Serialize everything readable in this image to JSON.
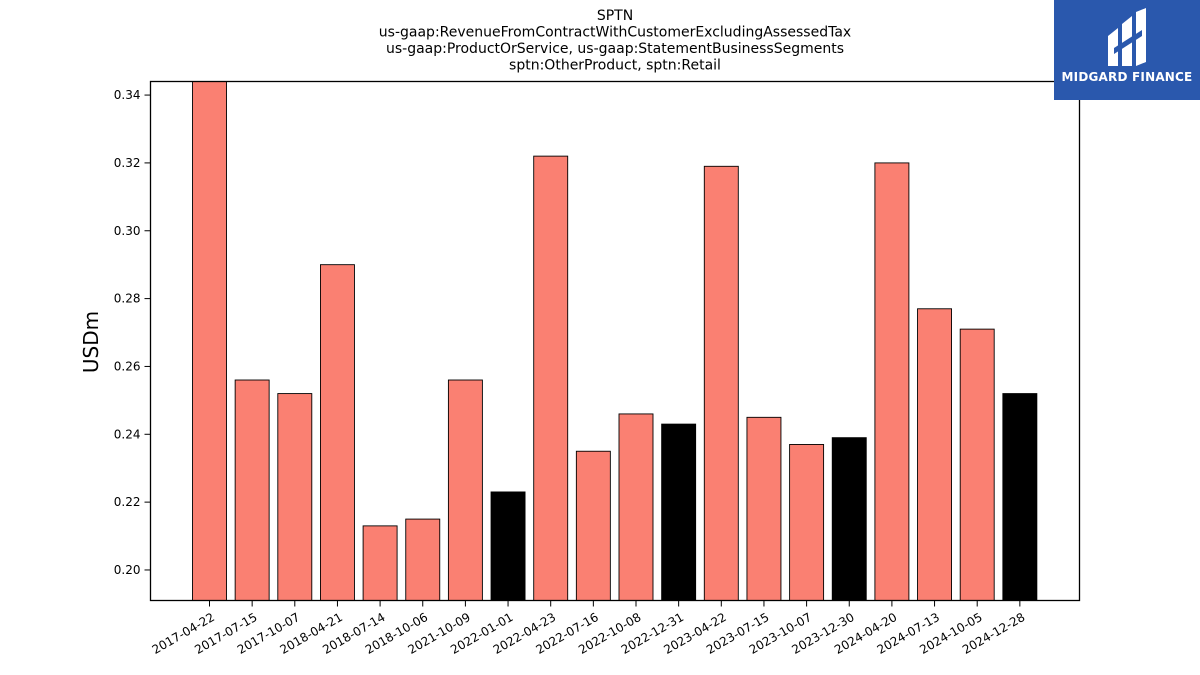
{
  "chart_data": {
    "type": "bar",
    "title_lines": [
      "SPTN",
      "us-gaap:RevenueFromContractWithCustomerExcludingAssessedTax",
      "us-gaap:ProductOrService, us-gaap:StatementBusinessSegments",
      "sptn:OtherProduct, sptn:Retail"
    ],
    "xlabel": "",
    "ylabel": "USDm",
    "ylim": [
      0.191,
      0.344
    ],
    "yticks": [
      "0.20",
      "0.22",
      "0.24",
      "0.26",
      "0.28",
      "0.30",
      "0.32",
      "0.34"
    ],
    "grid": false,
    "categories": [
      "2017-04-22",
      "2017-07-15",
      "2017-10-07",
      "2018-04-21",
      "2018-07-14",
      "2018-10-06",
      "2021-10-09",
      "2022-01-01",
      "2022-04-23",
      "2022-07-16",
      "2022-10-08",
      "2022-12-31",
      "2023-04-22",
      "2023-07-15",
      "2023-10-07",
      "2023-12-30",
      "2024-04-20",
      "2024-07-13",
      "2024-10-05",
      "2024-12-28"
    ],
    "values": [
      0.344,
      0.256,
      0.252,
      0.29,
      0.213,
      0.215,
      0.256,
      0.223,
      0.322,
      0.235,
      0.246,
      0.243,
      0.319,
      0.245,
      0.237,
      0.239,
      0.32,
      0.277,
      0.271,
      0.252
    ],
    "bar_colors": [
      "#fa8072",
      "#fa8072",
      "#fa8072",
      "#fa8072",
      "#fa8072",
      "#fa8072",
      "#fa8072",
      "#000000",
      "#fa8072",
      "#fa8072",
      "#fa8072",
      "#000000",
      "#fa8072",
      "#fa8072",
      "#fa8072",
      "#000000",
      "#fa8072",
      "#fa8072",
      "#fa8072",
      "#000000"
    ]
  },
  "logo": {
    "text": "MIDGARD FINANCE",
    "background": "#2a58ad",
    "icon": "midgard-logo-mark"
  }
}
